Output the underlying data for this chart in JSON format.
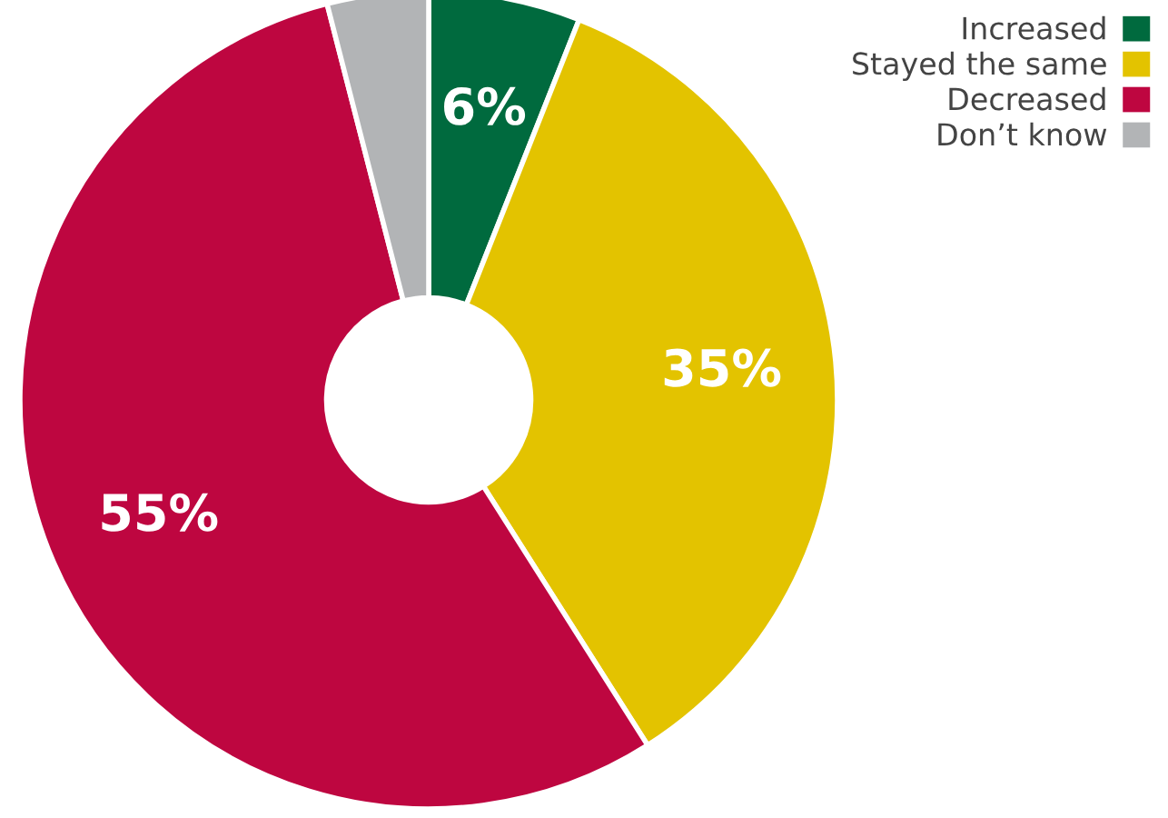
{
  "chart_data": {
    "type": "donut",
    "categories": [
      "Increased",
      "Stayed the same",
      "Decreased",
      "Don’t know"
    ],
    "values": [
      6,
      35,
      55,
      4
    ],
    "colors": [
      "#006a3e",
      "#e3c300",
      "#be0640",
      "#b2b4b6"
    ],
    "value_labels": [
      "6%",
      "35%",
      "55%",
      null
    ],
    "legend": "top right"
  }
}
